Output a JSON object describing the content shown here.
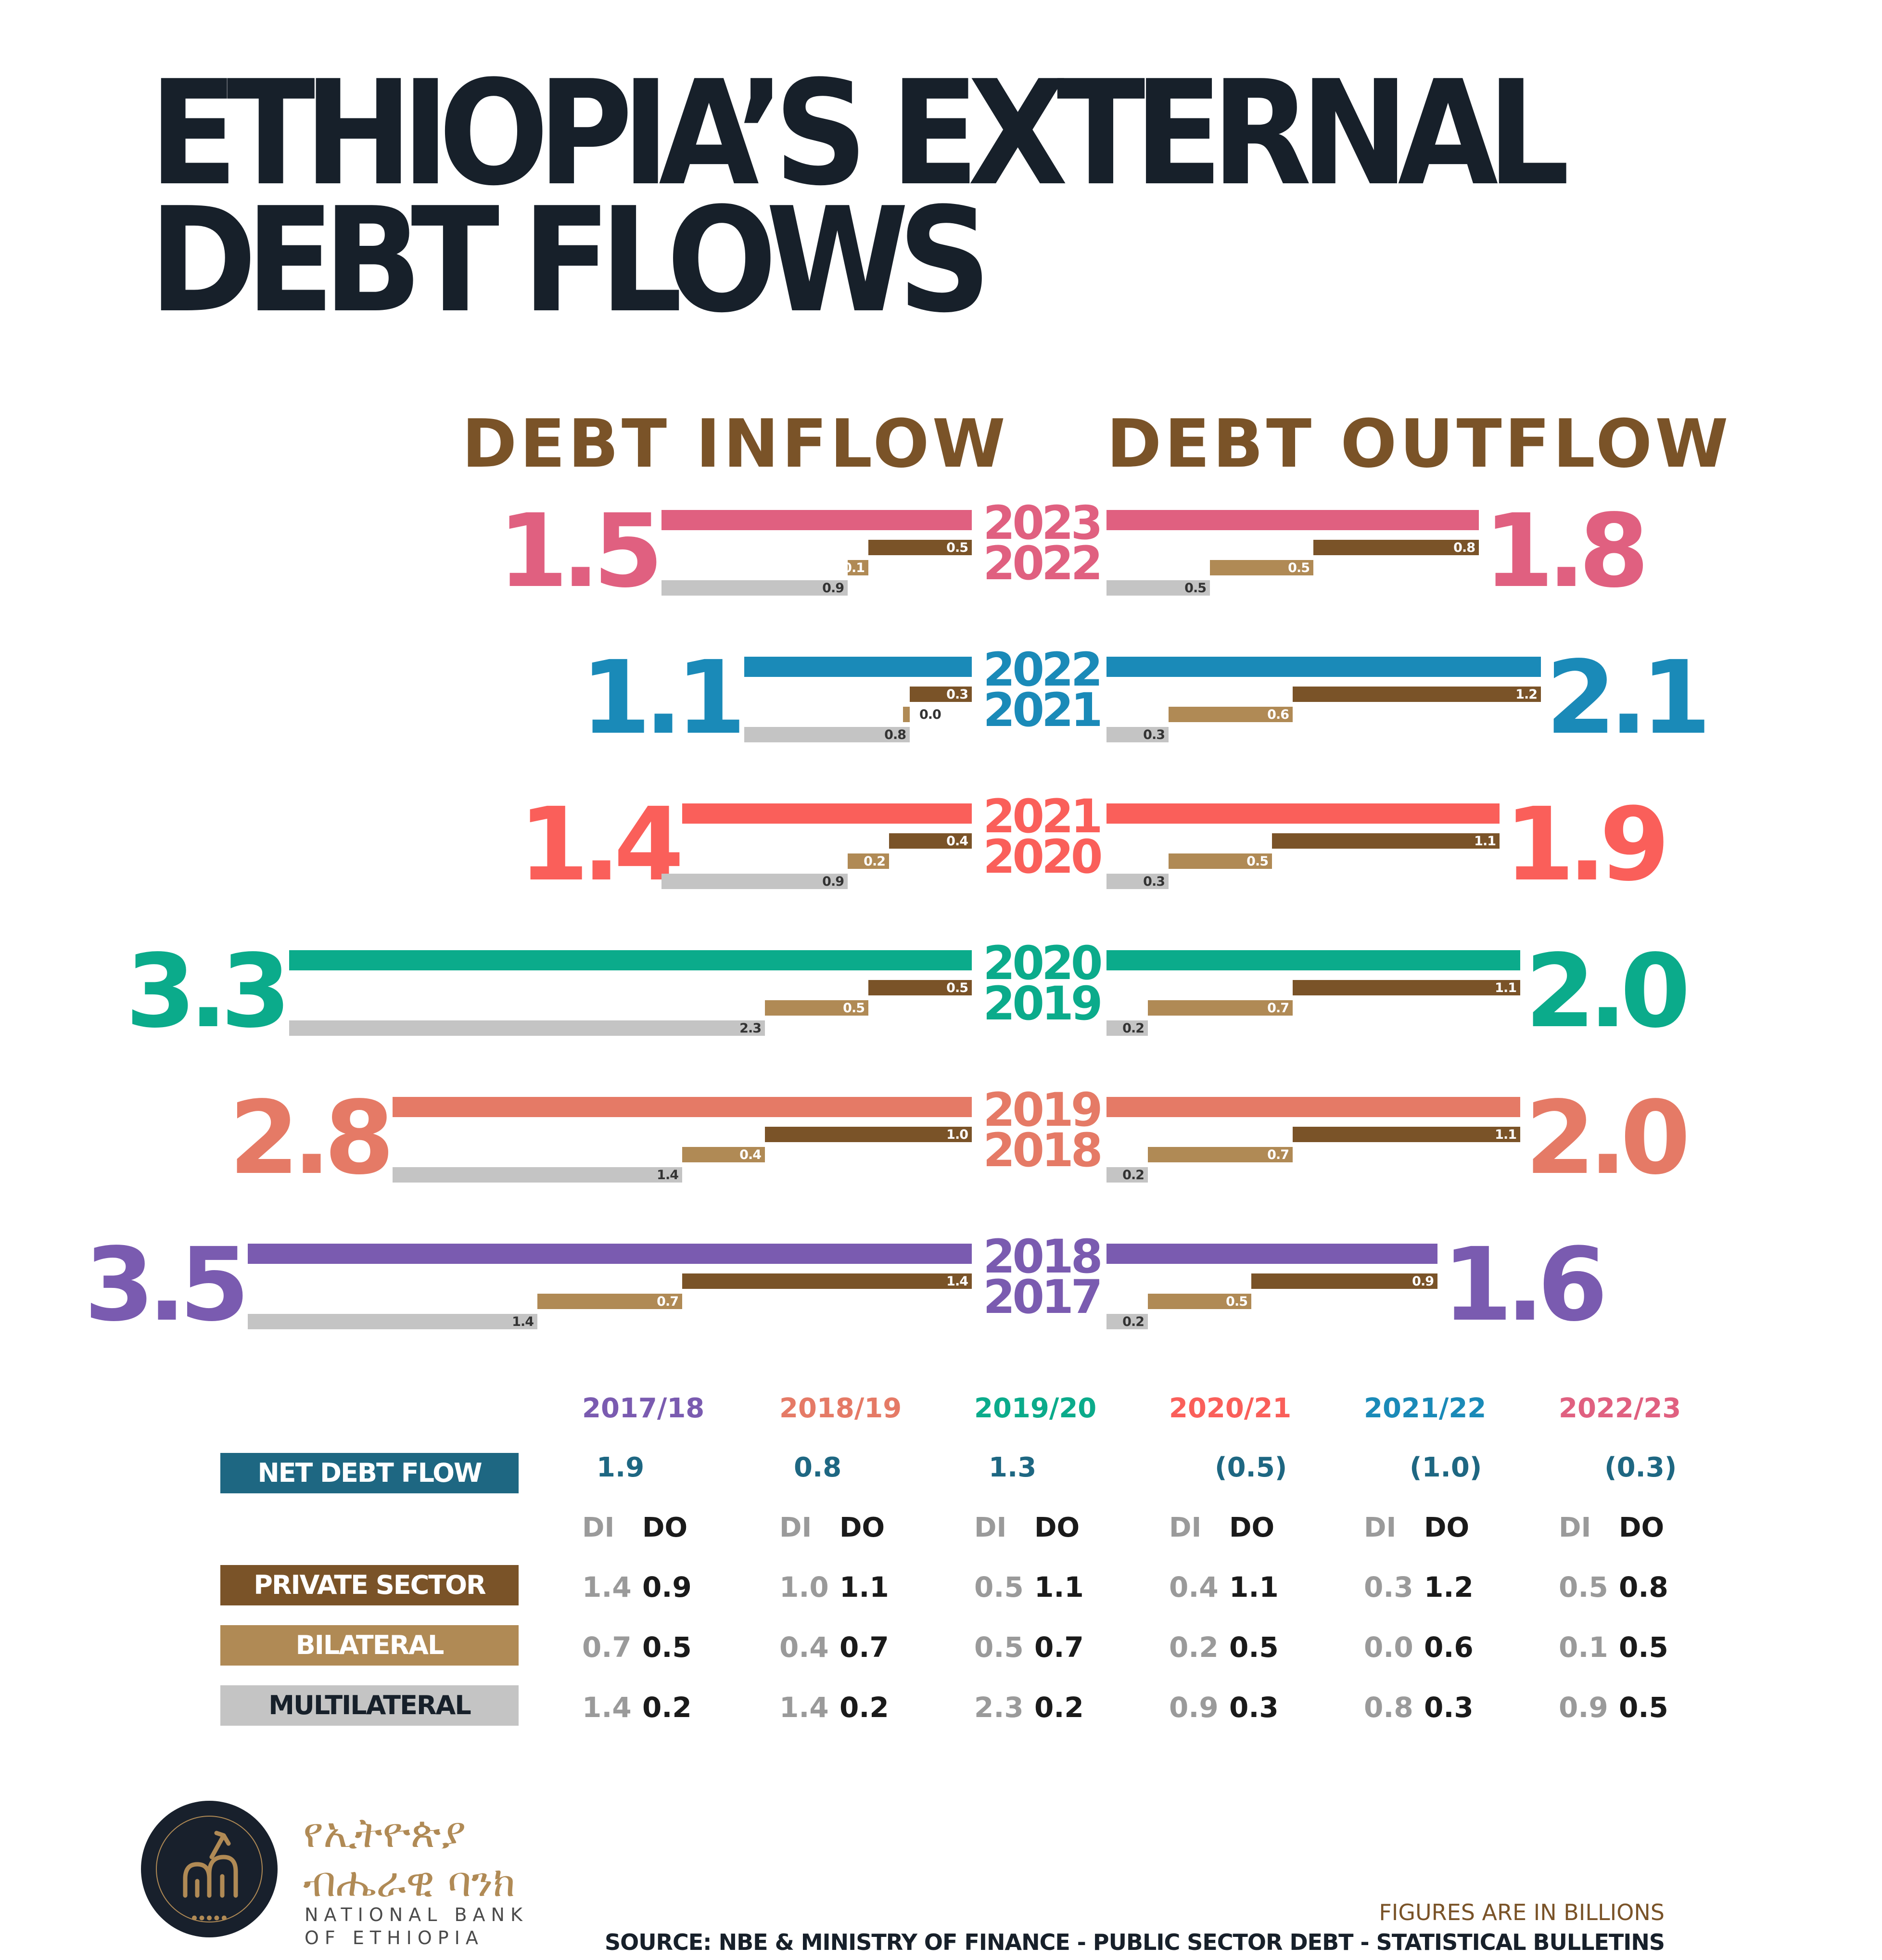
{
  "title": {
    "line1": "ETHIOPIA’S EXTERNAL",
    "line2": "DEBT FLOWS"
  },
  "headers": {
    "inflow": "DEBT INFLOW",
    "outflow": "DEBT OUTFLOW"
  },
  "colors": {
    "private": "#7a5328",
    "bilateral": "#b08a55",
    "multilateral": "#c4c4c4",
    "net_label": "#1e6782",
    "header_brown": "#7a5328",
    "title": "#17202a"
  },
  "chart_data": {
    "type": "bar",
    "units": "billions",
    "categories": [
      "2022/23",
      "2021/22",
      "2020/21",
      "2019/20",
      "2018/19",
      "2017/18"
    ],
    "year_labels": [
      [
        "2023",
        "2022"
      ],
      [
        "2022",
        "2021"
      ],
      [
        "2021",
        "2020"
      ],
      [
        "2020",
        "2019"
      ],
      [
        "2019",
        "2018"
      ],
      [
        "2018",
        "2017"
      ]
    ],
    "period_colors": [
      "#e06080",
      "#1a8ab8",
      "#fa5f5a",
      "#0bab8b",
      "#e57a66",
      "#7a5bb0"
    ],
    "inflow_total": [
      "1.5",
      "1.1",
      "1.4",
      "3.3",
      "2.8",
      "3.5"
    ],
    "outflow_total": [
      "1.8",
      "2.1",
      "1.9",
      "2.0",
      "2.0",
      "1.6"
    ],
    "series": [
      {
        "name": "PRIVATE SECTOR",
        "inflow": [
          "0.5",
          "0.3",
          "0.4",
          "0.5",
          "1.0",
          "1.4"
        ],
        "outflow": [
          "0.8",
          "1.2",
          "1.1",
          "1.1",
          "1.1",
          "0.9"
        ]
      },
      {
        "name": "BILATERAL",
        "inflow": [
          "0.1",
          "0.0",
          "0.2",
          "0.5",
          "0.4",
          "0.7"
        ],
        "outflow": [
          "0.5",
          "0.6",
          "0.5",
          "0.7",
          "0.7",
          "0.5"
        ]
      },
      {
        "name": "MULTILATERAL",
        "inflow": [
          "0.9",
          "0.8",
          "0.9",
          "2.3",
          "1.4",
          "1.4"
        ],
        "outflow": [
          "0.5",
          "0.3",
          "0.3",
          "0.2",
          "0.2",
          "0.2"
        ]
      }
    ]
  },
  "table": {
    "years": [
      "2017/18",
      "2018/19",
      "2019/20",
      "2020/21",
      "2021/22",
      "2022/23"
    ],
    "year_colors": [
      "#7a5bb0",
      "#e57a66",
      "#0bab8b",
      "#fa5f5a",
      "#1a8ab8",
      "#e06080"
    ],
    "net_label": "NET DEBT FLOW",
    "net_values": [
      "1.9",
      "0.8",
      "1.3",
      "(0.5)",
      "(1.0)",
      "(0.3)"
    ],
    "di_label": "DI",
    "do_label": "DO",
    "rows": [
      {
        "label": "PRIVATE SECTOR",
        "di": [
          "1.4",
          "1.0",
          "0.5",
          "0.4",
          "0.3",
          "0.5"
        ],
        "do": [
          "0.9",
          "1.1",
          "1.1",
          "1.1",
          "1.2",
          "0.8"
        ]
      },
      {
        "label": "BILATERAL",
        "di": [
          "0.7",
          "0.4",
          "0.5",
          "0.2",
          "0.0",
          "0.1"
        ],
        "do": [
          "0.5",
          "0.7",
          "0.7",
          "0.5",
          "0.6",
          "0.5"
        ]
      },
      {
        "label": "MULTILATERAL",
        "di": [
          "1.4",
          "1.4",
          "2.3",
          "0.9",
          "0.8",
          "0.9"
        ],
        "do": [
          "0.2",
          "0.2",
          "0.2",
          "0.3",
          "0.3",
          "0.5"
        ]
      }
    ]
  },
  "footer": {
    "logo_amharic_line1": "የኢትዮጵያ",
    "logo_amharic_line2": "ብሔራዊ ባንክ",
    "logo_english_line1": "NATIONAL BANK",
    "logo_english_line2": "OF ETHIOPIA",
    "seal_text": "NATIONAL BANK OF ETHIOPIA",
    "note": "FIGURES ARE IN BILLIONS",
    "source": "SOURCE: NBE & MINISTRY OF FINANCE - PUBLIC SECTOR DEBT - STATISTICAL BULLETINS"
  }
}
